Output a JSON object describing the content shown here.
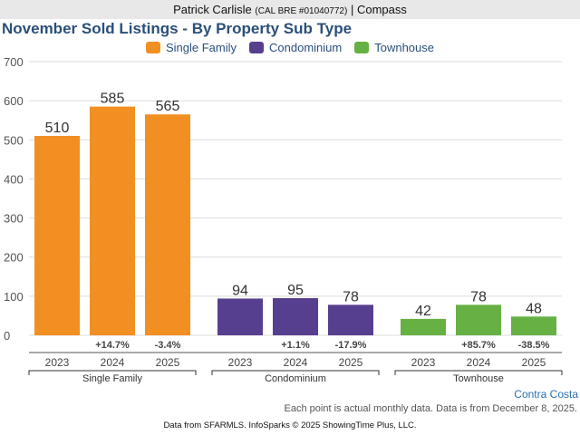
{
  "header": {
    "agent_name": "Patrick Carlisle",
    "license": "(CAL BRE #01040772)",
    "separator": "|",
    "brokerage": "Compass"
  },
  "footer": {
    "region": "Contra Costa",
    "note": "Each point is actual monthly data. Data is from December 8, 2025.",
    "source": "Data from SFARMLS. InfoSparks © 2025 ShowingTime Plus, LLC."
  },
  "chart_data": {
    "type": "bar",
    "title": "November Sold Listings - By Property Sub Type",
    "xlabel": "",
    "ylabel": "",
    "ylim": [
      0,
      700
    ],
    "yticks": [
      0,
      100,
      200,
      300,
      400,
      500,
      600,
      700
    ],
    "grid": true,
    "legend_position": "top-center",
    "legend": [
      {
        "name": "Single Family",
        "color": "#f28f22"
      },
      {
        "name": "Condominium",
        "color": "#573f8f"
      },
      {
        "name": "Townhouse",
        "color": "#67b043"
      }
    ],
    "groups": [
      {
        "name": "Single Family",
        "color": "#f28f22",
        "categories": [
          "2023",
          "2024",
          "2025"
        ],
        "values": [
          510,
          585,
          565
        ],
        "changes": [
          "",
          "+14.7%",
          "-3.4%"
        ]
      },
      {
        "name": "Condominium",
        "color": "#573f8f",
        "categories": [
          "2023",
          "2024",
          "2025"
        ],
        "values": [
          94,
          95,
          78
        ],
        "changes": [
          "",
          "+1.1%",
          "-17.9%"
        ]
      },
      {
        "name": "Townhouse",
        "color": "#67b043",
        "categories": [
          "2023",
          "2024",
          "2025"
        ],
        "values": [
          42,
          78,
          48
        ],
        "changes": [
          "",
          "+85.7%",
          "-38.5%"
        ]
      }
    ]
  }
}
